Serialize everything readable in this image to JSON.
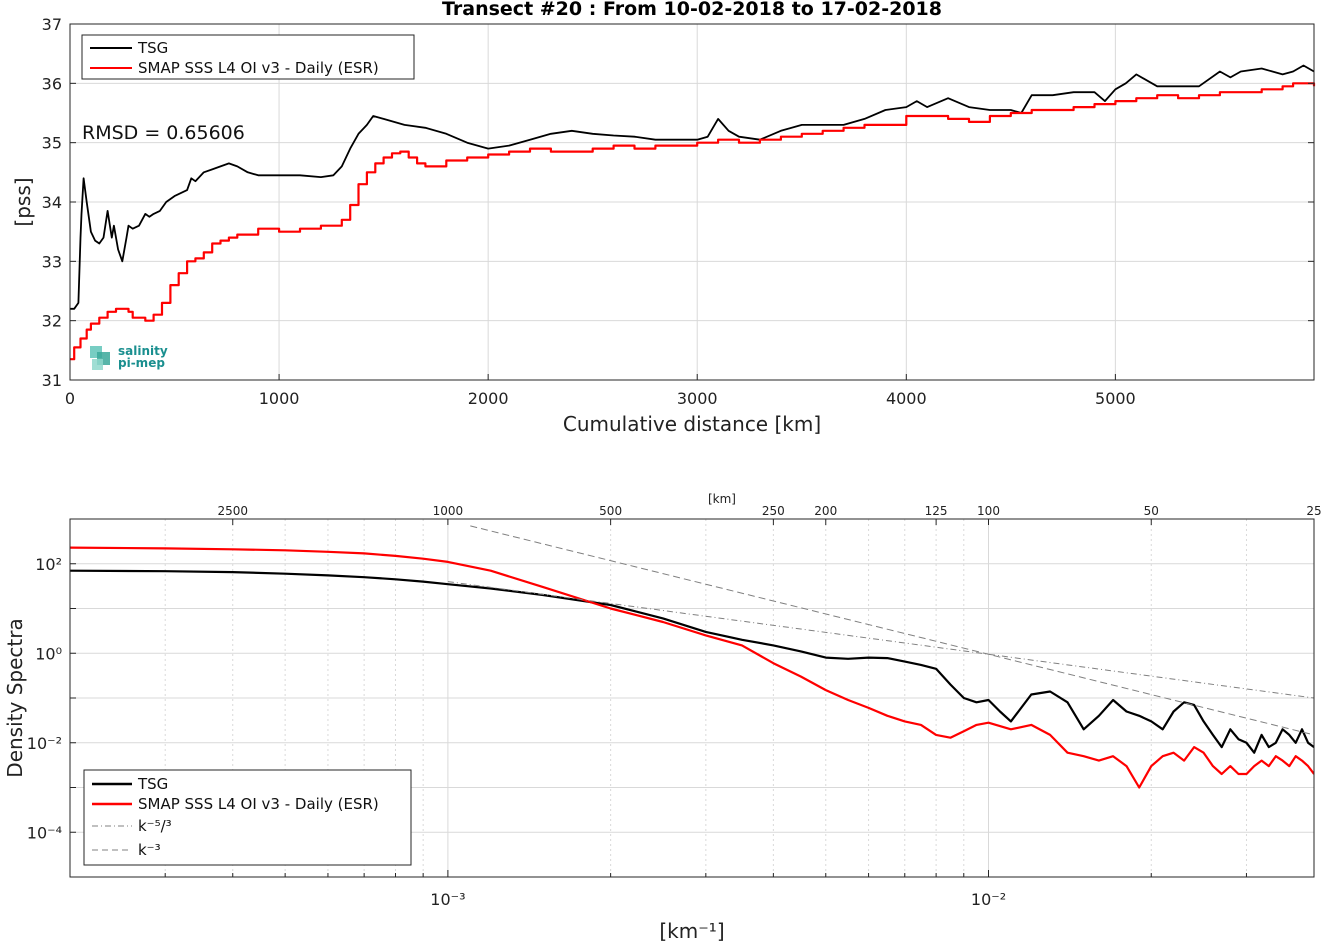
{
  "chart_data": [
    {
      "type": "line",
      "title": "Transect #20 : From 10-02-2018 to 17-02-2018",
      "xlabel": "Cumulative distance [km]",
      "ylabel": "[pss]",
      "xlim": [
        0,
        5950
      ],
      "ylim": [
        31,
        37
      ],
      "xticks": [
        "0",
        "1000",
        "2000",
        "3000",
        "4000",
        "5000"
      ],
      "yticks": [
        "31",
        "32",
        "33",
        "34",
        "35",
        "36",
        "37"
      ],
      "grid": true,
      "legend": "top-left",
      "annotation": "RMSD = 0.65606",
      "logo": {
        "line1": "salinity",
        "line2": "pi-mep"
      },
      "series": [
        {
          "name": "TSG",
          "color": "#000000",
          "x": [
            0,
            20,
            40,
            50,
            55,
            65,
            80,
            100,
            120,
            140,
            160,
            180,
            200,
            210,
            230,
            250,
            270,
            280,
            300,
            330,
            360,
            380,
            400,
            430,
            460,
            500,
            560,
            580,
            600,
            640,
            680,
            720,
            760,
            800,
            850,
            900,
            1000,
            1100,
            1200,
            1260,
            1300,
            1340,
            1380,
            1420,
            1450,
            1500,
            1600,
            1700,
            1800,
            1900,
            2000,
            2100,
            2200,
            2300,
            2400,
            2500,
            2600,
            2700,
            2800,
            2900,
            3000,
            3050,
            3100,
            3150,
            3200,
            3300,
            3400,
            3500,
            3600,
            3700,
            3800,
            3900,
            4000,
            4050,
            4100,
            4200,
            4300,
            4400,
            4500,
            4550,
            4600,
            4700,
            4800,
            4900,
            4950,
            5000,
            5050,
            5100,
            5200,
            5300,
            5400,
            5500,
            5550,
            5600,
            5700,
            5800,
            5850,
            5900,
            5950
          ],
          "values": [
            32.2,
            32.2,
            32.3,
            33.4,
            33.8,
            34.4,
            34.0,
            33.5,
            33.35,
            33.3,
            33.4,
            33.85,
            33.4,
            33.6,
            33.2,
            33.0,
            33.4,
            33.6,
            33.55,
            33.6,
            33.8,
            33.75,
            33.8,
            33.85,
            34.0,
            34.1,
            34.2,
            34.4,
            34.35,
            34.5,
            34.55,
            34.6,
            34.65,
            34.6,
            34.5,
            34.45,
            34.45,
            34.45,
            34.42,
            34.45,
            34.6,
            34.9,
            35.15,
            35.3,
            35.45,
            35.4,
            35.3,
            35.25,
            35.15,
            35.0,
            34.9,
            34.95,
            35.05,
            35.15,
            35.2,
            35.15,
            35.12,
            35.1,
            35.05,
            35.05,
            35.05,
            35.1,
            35.4,
            35.2,
            35.1,
            35.05,
            35.2,
            35.3,
            35.3,
            35.3,
            35.4,
            35.55,
            35.6,
            35.7,
            35.6,
            35.75,
            35.6,
            35.55,
            35.55,
            35.5,
            35.8,
            35.8,
            35.85,
            35.85,
            35.7,
            35.9,
            36.0,
            36.15,
            35.95,
            35.95,
            35.95,
            36.2,
            36.1,
            36.2,
            36.25,
            36.15,
            36.2,
            36.3,
            36.2
          ]
        },
        {
          "name": "SMAP SSS L4 OI v3 - Daily (ESR)",
          "color": "#ff0000",
          "x": [
            0,
            20,
            50,
            80,
            100,
            140,
            180,
            220,
            260,
            280,
            300,
            340,
            360,
            400,
            440,
            480,
            520,
            560,
            600,
            640,
            680,
            720,
            760,
            800,
            900,
            1000,
            1100,
            1200,
            1300,
            1340,
            1380,
            1420,
            1460,
            1500,
            1540,
            1580,
            1620,
            1660,
            1700,
            1800,
            1900,
            2000,
            2100,
            2200,
            2300,
            2400,
            2500,
            2600,
            2700,
            2800,
            2900,
            3000,
            3100,
            3200,
            3300,
            3400,
            3500,
            3600,
            3700,
            3800,
            3900,
            4000,
            4100,
            4200,
            4300,
            4400,
            4500,
            4600,
            4700,
            4800,
            4900,
            5000,
            5100,
            5200,
            5300,
            5400,
            5500,
            5600,
            5700,
            5800,
            5850,
            5900,
            5950
          ],
          "values": [
            31.35,
            31.55,
            31.7,
            31.85,
            31.95,
            32.05,
            32.15,
            32.2,
            32.2,
            32.15,
            32.05,
            32.05,
            32.0,
            32.1,
            32.3,
            32.6,
            32.8,
            33.0,
            33.05,
            33.15,
            33.3,
            33.35,
            33.4,
            33.45,
            33.55,
            33.5,
            33.55,
            33.6,
            33.7,
            33.95,
            34.3,
            34.5,
            34.65,
            34.75,
            34.82,
            34.85,
            34.75,
            34.65,
            34.6,
            34.7,
            34.75,
            34.8,
            34.85,
            34.9,
            34.85,
            34.85,
            34.9,
            34.95,
            34.9,
            34.95,
            34.95,
            35.0,
            35.05,
            35.0,
            35.05,
            35.1,
            35.15,
            35.2,
            35.25,
            35.3,
            35.3,
            35.45,
            35.45,
            35.4,
            35.35,
            35.45,
            35.5,
            35.55,
            35.55,
            35.6,
            35.65,
            35.7,
            35.75,
            35.8,
            35.75,
            35.8,
            35.85,
            35.85,
            35.9,
            35.95,
            36.0,
            36.0,
            35.95
          ]
        }
      ]
    },
    {
      "type": "line",
      "xscale": "log",
      "yscale": "log",
      "xlabel": "[km⁻¹]",
      "ylabel": "Density Spectra",
      "top_axis_label": "[km]",
      "xlim": [
        0.0002,
        0.04
      ],
      "ylim": [
        1e-05,
        1000
      ],
      "xticks_major": [
        "10⁻³",
        "10⁻²"
      ],
      "yticks_major": [
        "10⁻⁴",
        "10⁻²",
        "10⁰",
        "10²"
      ],
      "top_ticks": [
        "2500",
        "1000",
        "500",
        "250",
        "200",
        "125",
        "100",
        "50",
        "25"
      ],
      "grid": true,
      "legend": "bottom-left",
      "series": [
        {
          "name": "TSG",
          "color": "#000000",
          "x": [
            0.0002,
            0.0003,
            0.0004,
            0.0005,
            0.0006,
            0.0007,
            0.0008,
            0.0009,
            0.001,
            0.0012,
            0.0015,
            0.002,
            0.0025,
            0.003,
            0.0035,
            0.004,
            0.0045,
            0.005,
            0.0055,
            0.006,
            0.0065,
            0.007,
            0.0075,
            0.008,
            0.0085,
            0.009,
            0.0095,
            0.01,
            0.0105,
            0.011,
            0.012,
            0.013,
            0.014,
            0.015,
            0.016,
            0.017,
            0.018,
            0.019,
            0.02,
            0.021,
            0.022,
            0.023,
            0.024,
            0.025,
            0.026,
            0.027,
            0.028,
            0.029,
            0.03,
            0.031,
            0.032,
            0.033,
            0.034,
            0.035,
            0.036,
            0.037,
            0.038,
            0.039,
            0.04
          ],
          "values": [
            70,
            68,
            65,
            60,
            55,
            50,
            45,
            40,
            35,
            28,
            20,
            12,
            6,
            3,
            2,
            1.5,
            1.1,
            0.8,
            0.75,
            0.8,
            0.78,
            0.65,
            0.55,
            0.45,
            0.2,
            0.1,
            0.08,
            0.09,
            0.05,
            0.03,
            0.12,
            0.14,
            0.08,
            0.02,
            0.04,
            0.09,
            0.05,
            0.04,
            0.03,
            0.02,
            0.05,
            0.08,
            0.07,
            0.03,
            0.015,
            0.008,
            0.02,
            0.012,
            0.01,
            0.006,
            0.015,
            0.008,
            0.01,
            0.02,
            0.015,
            0.01,
            0.02,
            0.01,
            0.008
          ]
        },
        {
          "name": "SMAP SSS L4 OI v3 - Daily (ESR)",
          "color": "#ff0000",
          "x": [
            0.0002,
            0.0003,
            0.0004,
            0.0005,
            0.0006,
            0.0007,
            0.0008,
            0.0009,
            0.001,
            0.0012,
            0.0015,
            0.002,
            0.0025,
            0.003,
            0.0035,
            0.004,
            0.0045,
            0.005,
            0.0055,
            0.006,
            0.0065,
            0.007,
            0.0075,
            0.008,
            0.0085,
            0.009,
            0.0095,
            0.01,
            0.011,
            0.012,
            0.013,
            0.014,
            0.015,
            0.016,
            0.017,
            0.018,
            0.019,
            0.02,
            0.021,
            0.022,
            0.023,
            0.024,
            0.025,
            0.026,
            0.027,
            0.028,
            0.029,
            0.03,
            0.031,
            0.032,
            0.033,
            0.034,
            0.035,
            0.036,
            0.037,
            0.038,
            0.039,
            0.04
          ],
          "values": [
            230,
            220,
            210,
            200,
            185,
            170,
            150,
            130,
            110,
            70,
            30,
            10,
            5,
            2.5,
            1.5,
            0.6,
            0.3,
            0.15,
            0.09,
            0.06,
            0.04,
            0.03,
            0.025,
            0.015,
            0.013,
            0.018,
            0.025,
            0.028,
            0.02,
            0.025,
            0.015,
            0.006,
            0.005,
            0.004,
            0.005,
            0.003,
            0.001,
            0.003,
            0.005,
            0.006,
            0.004,
            0.008,
            0.006,
            0.003,
            0.002,
            0.003,
            0.002,
            0.002,
            0.003,
            0.004,
            0.003,
            0.005,
            0.004,
            0.003,
            0.005,
            0.004,
            0.003,
            0.002
          ]
        },
        {
          "name": "k⁻⁵/³",
          "color": "#808080",
          "style": "dashdot",
          "x": [
            0.001,
            0.04
          ],
          "values": [
            40,
            0.1
          ]
        },
        {
          "name": "k⁻³",
          "color": "#808080",
          "style": "dashed",
          "x": [
            0.0011,
            0.04
          ],
          "values": [
            700,
            0.015
          ]
        }
      ]
    }
  ]
}
